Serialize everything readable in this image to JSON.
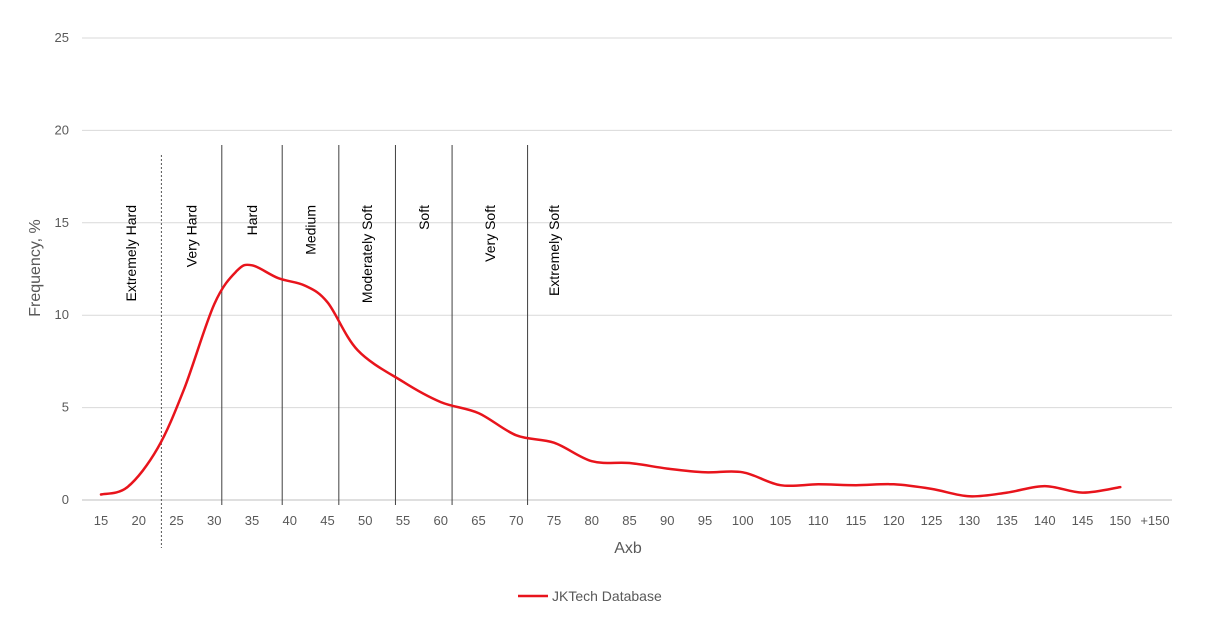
{
  "chart_data": {
    "type": "line",
    "xlabel": "Axb",
    "ylabel": "Frequency, %",
    "ylim": [
      0,
      25
    ],
    "yticks": [
      0,
      5,
      10,
      15,
      20,
      25
    ],
    "categories": [
      "15",
      "20",
      "25",
      "30",
      "35",
      "40",
      "45",
      "50",
      "55",
      "60",
      "65",
      "70",
      "75",
      "80",
      "85",
      "90",
      "95",
      "100",
      "105",
      "110",
      "115",
      "120",
      "125",
      "130",
      "135",
      "140",
      "145",
      "150",
      "+150"
    ],
    "grid": "horizontal",
    "legend_position": "bottom",
    "series": [
      {
        "name": "JKTech Database",
        "color": "#e8141c",
        "x": [
          15,
          18.5,
          22.5,
          26,
          30,
          33,
          35,
          38.5,
          42,
          45,
          49,
          55,
          60,
          65,
          70,
          75,
          80,
          85,
          90,
          95,
          100,
          105,
          110,
          115,
          120,
          125,
          130,
          135,
          140,
          145,
          150
        ],
        "y": [
          0.3,
          0.7,
          2.8,
          6,
          10.6,
          12.4,
          12.7,
          12,
          11.6,
          10.7,
          8.1,
          6.4,
          5.3,
          4.7,
          3.5,
          3.1,
          2.1,
          2.0,
          1.7,
          1.5,
          1.5,
          0.8,
          0.85,
          0.8,
          0.85,
          0.6,
          0.2,
          0.4,
          0.75,
          0.4,
          0.7
        ]
      }
    ],
    "regions": [
      {
        "label": "Extremely Hard",
        "from": 15,
        "to": 23
      },
      {
        "label": "Very Hard",
        "from": 23,
        "to": 31
      },
      {
        "label": "Hard",
        "from": 31,
        "to": 39
      },
      {
        "label": "Medium",
        "from": 39,
        "to": 46.5
      },
      {
        "label": "Moderately Soft",
        "from": 46.5,
        "to": 54
      },
      {
        "label": "Soft",
        "from": 54,
        "to": 61.5
      },
      {
        "label": "Very Soft",
        "from": 61.5,
        "to": 71.5
      },
      {
        "label": "Extremely Soft",
        "from": 71.5,
        "to": null
      }
    ],
    "boundaries": [
      {
        "x": 23,
        "style": "dotted"
      },
      {
        "x": 31,
        "style": "solid"
      },
      {
        "x": 39,
        "style": "solid"
      },
      {
        "x": 46.5,
        "style": "solid"
      },
      {
        "x": 54,
        "style": "solid"
      },
      {
        "x": 61.5,
        "style": "solid"
      },
      {
        "x": 71.5,
        "style": "solid"
      }
    ]
  }
}
